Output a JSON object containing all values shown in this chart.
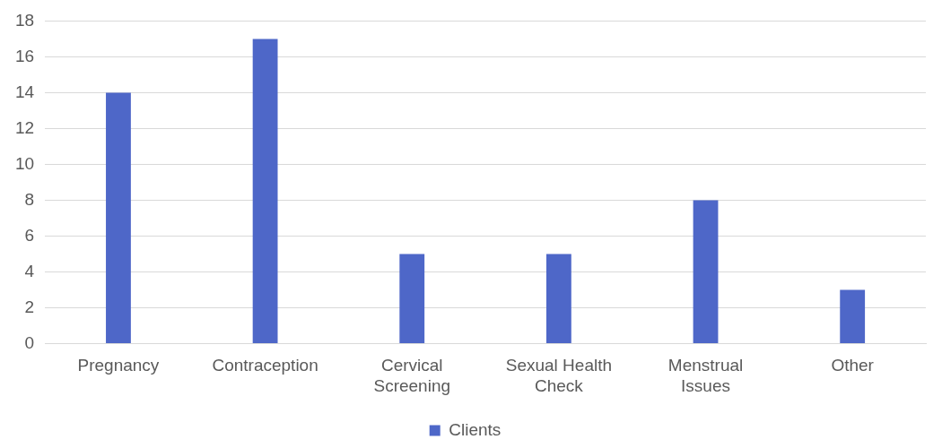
{
  "chart_data": {
    "type": "bar",
    "categories": [
      "Pregnancy",
      "Contraception",
      "Cervical Screening",
      "Sexual Health Check",
      "Menstrual Issues",
      "Other"
    ],
    "series": [
      {
        "name": "Clients",
        "color": "#4e67c8",
        "values": [
          14,
          17,
          5,
          5,
          8,
          3
        ]
      }
    ],
    "ylim": [
      0,
      18
    ],
    "yticks": [
      0,
      2,
      4,
      6,
      8,
      10,
      12,
      14,
      16,
      18
    ],
    "grid": "y",
    "legend": "bottom"
  }
}
